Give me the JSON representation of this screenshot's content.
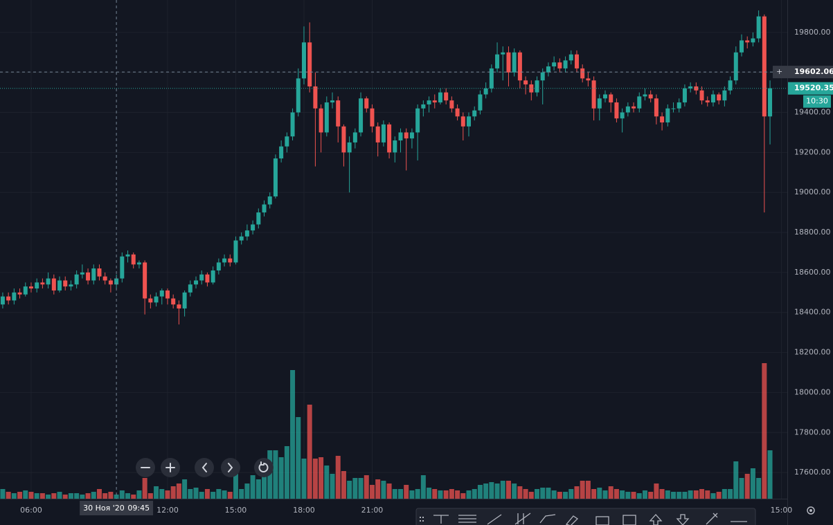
{
  "chart_data": {
    "type": "candlestick",
    "up_color": "#26a69a",
    "down_color": "#ef5350",
    "grid": true,
    "xlim": [
      4.63,
      39.26
    ],
    "ylim": [
      17469,
      19962
    ],
    "xticks": [
      {
        "value": 6,
        "label": "06:00"
      },
      {
        "value": 12,
        "label": "12:00"
      },
      {
        "value": 15,
        "label": "15:00"
      },
      {
        "value": 18,
        "label": "18:00"
      },
      {
        "value": 21,
        "label": "21:00"
      },
      {
        "value": 39,
        "label": "15:00"
      }
    ],
    "yticks": [
      {
        "value": 17600,
        "label": "17600.00"
      },
      {
        "value": 17800,
        "label": "17800.00"
      },
      {
        "value": 18000,
        "label": "18000.00"
      },
      {
        "value": 18200,
        "label": "18200.00"
      },
      {
        "value": 18400,
        "label": "18400.00"
      },
      {
        "value": 18600,
        "label": "18600.00"
      },
      {
        "value": 18800,
        "label": "18800.00"
      },
      {
        "value": 19000,
        "label": "19000.00"
      },
      {
        "value": 19200,
        "label": "19200.00"
      },
      {
        "value": 19400,
        "label": "19400.00"
      },
      {
        "value": 19600,
        "label": "19600.00"
      },
      {
        "value": 19800,
        "label": "19800.00"
      }
    ],
    "crosshair": {
      "x": 9.75,
      "date_label": "30 Ноя '20",
      "time_label": "09:45",
      "price": 19602.06
    },
    "countdown": "10:30",
    "x": [
      4.75,
      5,
      5.25,
      5.5,
      5.75,
      6,
      6.25,
      6.5,
      6.75,
      7,
      7.25,
      7.5,
      7.75,
      8,
      8.25,
      8.5,
      8.75,
      9,
      9.25,
      9.5,
      9.75,
      10,
      10.25,
      10.5,
      10.75,
      11,
      11.25,
      11.5,
      11.75,
      12,
      12.25,
      12.5,
      12.75,
      13,
      13.25,
      13.5,
      13.75,
      14,
      14.25,
      14.5,
      14.75,
      15,
      15.25,
      15.5,
      15.75,
      16,
      16.25,
      16.5,
      16.75,
      17,
      17.25,
      17.5,
      17.75,
      18,
      18.25,
      18.5,
      18.75,
      19,
      19.25,
      19.5,
      19.75,
      20,
      20.25,
      20.5,
      20.75,
      21,
      21.25,
      21.5,
      21.75,
      22,
      22.25,
      22.5,
      22.75,
      23,
      23.25,
      23.5,
      23.75,
      24,
      24.25,
      24.5,
      24.75,
      25,
      25.25,
      25.5,
      25.75,
      26,
      26.25,
      26.5,
      26.75,
      27,
      27.25,
      27.5,
      27.75,
      28,
      28.25,
      28.5,
      28.75,
      29,
      29.25,
      29.5,
      29.75,
      30,
      30.25,
      30.5,
      30.75,
      31,
      31.25,
      31.5,
      31.75,
      32,
      32.25,
      32.5,
      32.75,
      33,
      33.25,
      33.5,
      33.75,
      34,
      34.25,
      34.5,
      34.75,
      35,
      35.25,
      35.5,
      35.75,
      36,
      36.25,
      36.5,
      36.75,
      37,
      37.25,
      37.5,
      37.75,
      38,
      38.25,
      38.5
    ],
    "ohlc": [
      [
        18440,
        18500,
        18420,
        18480
      ],
      [
        18480,
        18500,
        18440,
        18460
      ],
      [
        18460,
        18520,
        18440,
        18500
      ],
      [
        18500,
        18520,
        18470,
        18490
      ],
      [
        18490,
        18550,
        18480,
        18530
      ],
      [
        18530,
        18550,
        18500,
        18520
      ],
      [
        18520,
        18570,
        18500,
        18550
      ],
      [
        18550,
        18570,
        18520,
        18540
      ],
      [
        18540,
        18600,
        18520,
        18570
      ],
      [
        18570,
        18590,
        18490,
        18510
      ],
      [
        18510,
        18580,
        18500,
        18560
      ],
      [
        18560,
        18580,
        18510,
        18530
      ],
      [
        18530,
        18560,
        18510,
        18540
      ],
      [
        18540,
        18610,
        18520,
        18590
      ],
      [
        18590,
        18640,
        18570,
        18600
      ],
      [
        18600,
        18620,
        18540,
        18560
      ],
      [
        18560,
        18640,
        18540,
        18620
      ],
      [
        18620,
        18640,
        18560,
        18580
      ],
      [
        18580,
        18600,
        18540,
        18560
      ],
      [
        18560,
        18570,
        18500,
        18540
      ],
      [
        18540,
        18590,
        18520,
        18570
      ],
      [
        18570,
        18700,
        18550,
        18680
      ],
      [
        18680,
        18710,
        18650,
        18690
      ],
      [
        18690,
        18700,
        18620,
        18640
      ],
      [
        18640,
        18660,
        18620,
        18650
      ],
      [
        18650,
        18660,
        18390,
        18470
      ],
      [
        18470,
        18490,
        18420,
        18450
      ],
      [
        18450,
        18500,
        18430,
        18480
      ],
      [
        18480,
        18520,
        18440,
        18510
      ],
      [
        18510,
        18520,
        18440,
        18470
      ],
      [
        18470,
        18490,
        18420,
        18440
      ],
      [
        18440,
        18460,
        18340,
        18420
      ],
      [
        18420,
        18510,
        18380,
        18500
      ],
      [
        18500,
        18560,
        18480,
        18540
      ],
      [
        18540,
        18580,
        18520,
        18560
      ],
      [
        18560,
        18610,
        18540,
        18590
      ],
      [
        18590,
        18600,
        18530,
        18550
      ],
      [
        18550,
        18630,
        18540,
        18610
      ],
      [
        18610,
        18670,
        18590,
        18650
      ],
      [
        18650,
        18690,
        18630,
        18670
      ],
      [
        18670,
        18690,
        18630,
        18650
      ],
      [
        18650,
        18780,
        18640,
        18760
      ],
      [
        18760,
        18800,
        18740,
        18780
      ],
      [
        18780,
        18840,
        18760,
        18810
      ],
      [
        18810,
        18860,
        18790,
        18840
      ],
      [
        18840,
        18920,
        18820,
        18900
      ],
      [
        18900,
        18960,
        18880,
        18940
      ],
      [
        18940,
        19000,
        18920,
        18980
      ],
      [
        18980,
        19190,
        18970,
        19170
      ],
      [
        19170,
        19260,
        19150,
        19230
      ],
      [
        19230,
        19300,
        19200,
        19280
      ],
      [
        19280,
        19420,
        19260,
        19400
      ],
      [
        19400,
        19620,
        19380,
        19570
      ],
      [
        19570,
        19830,
        19540,
        19750
      ],
      [
        19750,
        19850,
        19500,
        19530
      ],
      [
        19530,
        19600,
        19130,
        19420
      ],
      [
        19420,
        19440,
        19200,
        19300
      ],
      [
        19300,
        19480,
        19280,
        19450
      ],
      [
        19450,
        19500,
        19420,
        19460
      ],
      [
        19460,
        19480,
        19250,
        19330
      ],
      [
        19330,
        19340,
        19130,
        19200
      ],
      [
        19200,
        19280,
        19000,
        19250
      ],
      [
        19250,
        19320,
        19220,
        19300
      ],
      [
        19300,
        19500,
        19280,
        19470
      ],
      [
        19470,
        19480,
        19400,
        19420
      ],
      [
        19420,
        19440,
        19300,
        19330
      ],
      [
        19330,
        19350,
        19180,
        19250
      ],
      [
        19250,
        19360,
        19230,
        19340
      ],
      [
        19340,
        19350,
        19170,
        19200
      ],
      [
        19200,
        19280,
        19150,
        19260
      ],
      [
        19260,
        19320,
        19200,
        19300
      ],
      [
        19300,
        19320,
        19110,
        19270
      ],
      [
        19270,
        19320,
        19220,
        19300
      ],
      [
        19300,
        19440,
        19160,
        19420
      ],
      [
        19420,
        19460,
        19380,
        19440
      ],
      [
        19440,
        19480,
        19400,
        19460
      ],
      [
        19460,
        19490,
        19420,
        19450
      ],
      [
        19450,
        19520,
        19440,
        19500
      ],
      [
        19500,
        19520,
        19440,
        19460
      ],
      [
        19460,
        19480,
        19400,
        19420
      ],
      [
        19420,
        19440,
        19360,
        19380
      ],
      [
        19380,
        19400,
        19260,
        19330
      ],
      [
        19330,
        19400,
        19280,
        19380
      ],
      [
        19380,
        19430,
        19360,
        19410
      ],
      [
        19410,
        19510,
        19390,
        19490
      ],
      [
        19490,
        19550,
        19470,
        19520
      ],
      [
        19520,
        19640,
        19500,
        19620
      ],
      [
        19620,
        19750,
        19600,
        19690
      ],
      [
        19690,
        19730,
        19560,
        19700
      ],
      [
        19700,
        19730,
        19530,
        19600
      ],
      [
        19600,
        19720,
        19580,
        19700
      ],
      [
        19700,
        19710,
        19520,
        19560
      ],
      [
        19560,
        19580,
        19490,
        19540
      ],
      [
        19540,
        19560,
        19460,
        19500
      ],
      [
        19500,
        19580,
        19480,
        19560
      ],
      [
        19560,
        19620,
        19440,
        19600
      ],
      [
        19600,
        19650,
        19580,
        19630
      ],
      [
        19630,
        19680,
        19610,
        19650
      ],
      [
        19650,
        19670,
        19600,
        19620
      ],
      [
        19620,
        19680,
        19600,
        19660
      ],
      [
        19660,
        19710,
        19640,
        19690
      ],
      [
        19690,
        19710,
        19600,
        19620
      ],
      [
        19620,
        19640,
        19550,
        19570
      ],
      [
        19570,
        19600,
        19530,
        19560
      ],
      [
        19560,
        19580,
        19360,
        19420
      ],
      [
        19420,
        19490,
        19360,
        19470
      ],
      [
        19470,
        19510,
        19450,
        19490
      ],
      [
        19490,
        19500,
        19400,
        19450
      ],
      [
        19450,
        19470,
        19350,
        19370
      ],
      [
        19370,
        19420,
        19300,
        19400
      ],
      [
        19400,
        19450,
        19380,
        19430
      ],
      [
        19430,
        19450,
        19400,
        19420
      ],
      [
        19420,
        19500,
        19400,
        19480
      ],
      [
        19480,
        19520,
        19460,
        19490
      ],
      [
        19490,
        19510,
        19450,
        19470
      ],
      [
        19470,
        19490,
        19340,
        19380
      ],
      [
        19380,
        19400,
        19310,
        19350
      ],
      [
        19350,
        19440,
        19330,
        19420
      ],
      [
        19420,
        19450,
        19400,
        19420
      ],
      [
        19420,
        19470,
        19400,
        19450
      ],
      [
        19450,
        19540,
        19430,
        19520
      ],
      [
        19520,
        19550,
        19500,
        19530
      ],
      [
        19530,
        19550,
        19490,
        19510
      ],
      [
        19510,
        19530,
        19440,
        19460
      ],
      [
        19460,
        19480,
        19430,
        19450
      ],
      [
        19450,
        19510,
        19430,
        19490
      ],
      [
        19490,
        19500,
        19440,
        19460
      ],
      [
        19460,
        19530,
        19430,
        19510
      ],
      [
        19510,
        19580,
        19490,
        19560
      ],
      [
        19560,
        19730,
        19540,
        19700
      ],
      [
        19700,
        19790,
        19680,
        19760
      ],
      [
        19760,
        19780,
        19720,
        19750
      ],
      [
        19750,
        19800,
        19730,
        19770
      ],
      [
        19770,
        19910,
        19750,
        19880
      ],
      [
        19880,
        19890,
        18900,
        19380
      ],
      [
        19380,
        19560,
        19240,
        19520.35
      ]
    ],
    "volume": [
      14,
      10,
      8,
      10,
      12,
      10,
      8,
      8,
      6,
      8,
      10,
      6,
      8,
      8,
      6,
      8,
      10,
      14,
      8,
      10,
      6,
      12,
      8,
      6,
      12,
      30,
      8,
      18,
      14,
      12,
      18,
      22,
      28,
      14,
      16,
      10,
      14,
      10,
      14,
      12,
      10,
      36,
      14,
      22,
      34,
      28,
      46,
      70,
      70,
      60,
      76,
      186,
      118,
      58,
      136,
      58,
      60,
      48,
      36,
      62,
      40,
      26,
      30,
      30,
      34,
      20,
      28,
      26,
      22,
      14,
      14,
      20,
      12,
      14,
      34,
      16,
      14,
      12,
      12,
      14,
      12,
      8,
      12,
      14,
      20,
      22,
      24,
      22,
      26,
      26,
      22,
      18,
      14,
      10,
      14,
      16,
      16,
      12,
      10,
      10,
      14,
      18,
      26,
      26,
      14,
      16,
      12,
      18,
      14,
      12,
      10,
      10,
      8,
      12,
      10,
      22,
      14,
      12,
      10,
      10,
      10,
      12,
      12,
      14,
      12,
      8,
      10,
      14,
      14,
      54,
      30,
      36,
      44,
      30,
      196,
      70
    ]
  }
}
